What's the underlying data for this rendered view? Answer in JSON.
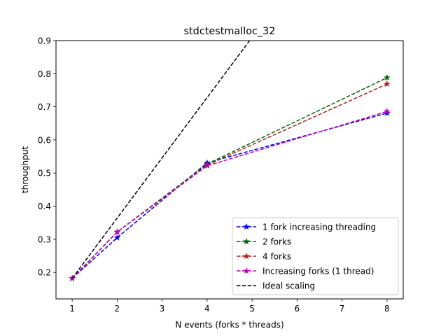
{
  "chart_data": {
    "type": "line",
    "title": "stdctestmalloc_32",
    "xlabel": "N events (forks * threads)",
    "ylabel": "throughput",
    "xlim": [
      0.64,
      8.36
    ],
    "ylim": [
      0.12,
      0.9
    ],
    "xticks": [
      1,
      2,
      3,
      4,
      5,
      6,
      7,
      8
    ],
    "yticks": [
      0.2,
      0.3,
      0.4,
      0.5,
      0.6,
      0.7,
      0.8,
      0.9
    ],
    "xtick_labels": [
      "1",
      "2",
      "3",
      "4",
      "5",
      "6",
      "7",
      "8"
    ],
    "ytick_labels": [
      "0.2",
      "0.3",
      "0.4",
      "0.5",
      "0.6",
      "0.7",
      "0.8",
      "0.9"
    ],
    "grid": false,
    "legend_position": "lower-right",
    "series": [
      {
        "name": "1 fork increasing threading",
        "color": "#0000ff",
        "marker": "star",
        "x": [
          1,
          2,
          4,
          8
        ],
        "y": [
          0.182,
          0.305,
          0.531,
          0.681
        ]
      },
      {
        "name": "2 forks",
        "color": "#006400",
        "marker": "star",
        "x": [
          1,
          2,
          4,
          8
        ],
        "y": [
          0.182,
          0.322,
          0.527,
          0.788
        ]
      },
      {
        "name": "4 forks",
        "color": "#b22222",
        "marker": "star",
        "x": [
          1,
          2,
          4,
          8
        ],
        "y": [
          0.182,
          0.322,
          0.524,
          0.769
        ]
      },
      {
        "name": "Increasing forks (1 thread)",
        "color": "#bf00bf",
        "marker": "star",
        "x": [
          1,
          2,
          4,
          8
        ],
        "y": [
          0.182,
          0.322,
          0.522,
          0.686
        ]
      },
      {
        "name": "Ideal scaling",
        "color": "#000000",
        "marker": "none",
        "x": [
          1,
          8
        ],
        "y": [
          0.182,
          1.456
        ]
      }
    ]
  }
}
